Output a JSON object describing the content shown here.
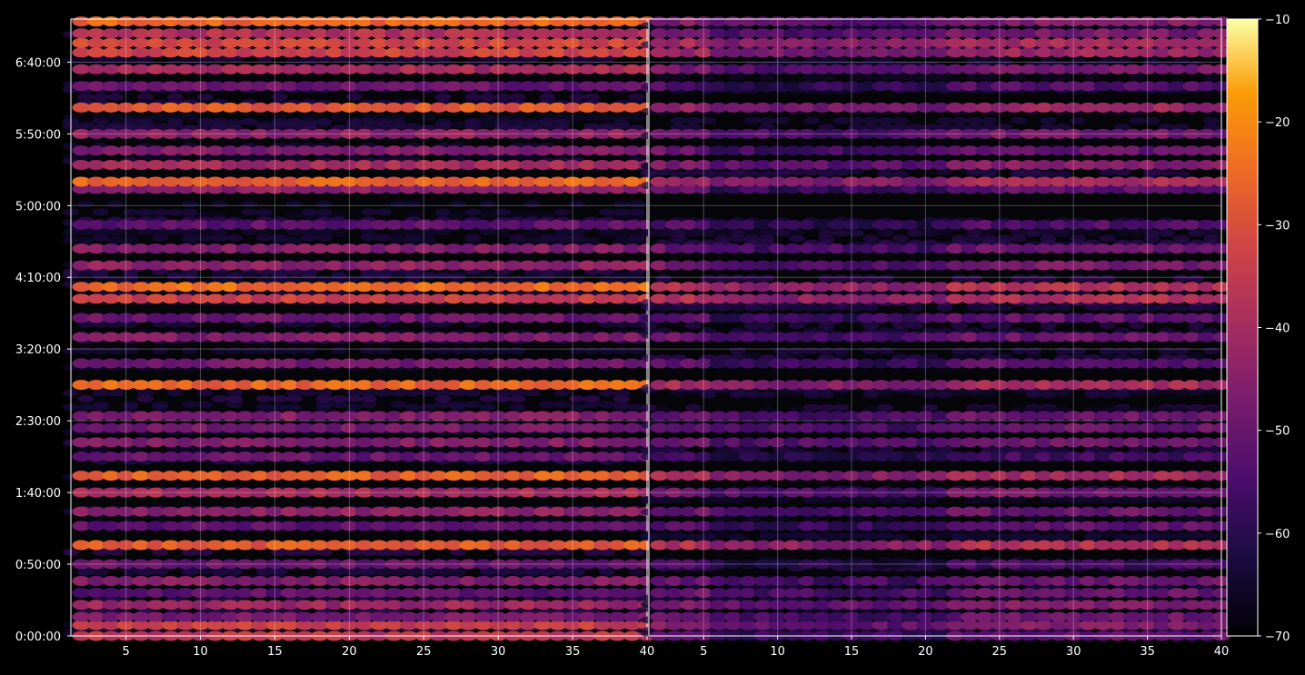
{
  "chart_data": {
    "type": "heatmap",
    "title": "",
    "colorscale": "inferno",
    "background": "#000000",
    "grid": true,
    "grid_color": "#ffffff",
    "panels": [
      {
        "name": "left",
        "xlim": [
          1.3,
          40
        ],
        "x_ticks": [
          "5",
          "10",
          "15",
          "20",
          "25",
          "30",
          "35",
          "40"
        ],
        "x_tick_values": [
          5,
          10,
          15,
          20,
          25,
          30,
          35,
          40
        ]
      },
      {
        "name": "right",
        "xlim": [
          1.3,
          40
        ],
        "x_ticks": [
          "5",
          "10",
          "15",
          "20",
          "25",
          "30",
          "35",
          "40"
        ],
        "x_tick_values": [
          5,
          10,
          15,
          20,
          25,
          30,
          35,
          40
        ]
      }
    ],
    "y_ticks": [
      "0:00:00",
      "0:50:00",
      "1:40:00",
      "2:30:00",
      "3:20:00",
      "4:10:00",
      "5:00:00",
      "5:50:00",
      "6:40:00"
    ],
    "y_tick_values": [
      0,
      3000,
      6000,
      9000,
      12000,
      15000,
      18000,
      21000,
      24000
    ],
    "ylim": [
      0,
      25800
    ],
    "colorbar": {
      "range": [
        -70,
        -10
      ],
      "ticks": [
        "−10",
        "−20",
        "−30",
        "−40",
        "−50",
        "−60",
        "−70"
      ],
      "tick_values": [
        -10,
        -20,
        -30,
        -40,
        -50,
        -60,
        -70
      ]
    },
    "bands": [
      {
        "t": 0,
        "left": -36,
        "right": -52
      },
      {
        "t": 450,
        "left": -34,
        "right": -46
      },
      {
        "t": 800,
        "left": -48,
        "right": -50
      },
      {
        "t": 1300,
        "left": -42,
        "right": -46
      },
      {
        "t": 1800,
        "left": -52,
        "right": -50
      },
      {
        "t": 2300,
        "left": -46,
        "right": -50
      },
      {
        "t": 3000,
        "left": -50,
        "right": -56
      },
      {
        "t": 3800,
        "left": -28,
        "right": -38
      },
      {
        "t": 4600,
        "left": -52,
        "right": -52
      },
      {
        "t": 5200,
        "left": -44,
        "right": -50
      },
      {
        "t": 6000,
        "left": -40,
        "right": -48
      },
      {
        "t": 6700,
        "left": -27,
        "right": -40
      },
      {
        "t": 7500,
        "left": -50,
        "right": -56
      },
      {
        "t": 8100,
        "left": -46,
        "right": -48
      },
      {
        "t": 8700,
        "left": -48,
        "right": -50
      },
      {
        "t": 9200,
        "left": -46,
        "right": -50
      },
      {
        "t": 10500,
        "left": -26,
        "right": -40
      },
      {
        "t": 11400,
        "left": -48,
        "right": -52
      },
      {
        "t": 12500,
        "left": -46,
        "right": -50
      },
      {
        "t": 13300,
        "left": -50,
        "right": -52
      },
      {
        "t": 14100,
        "left": -34,
        "right": -38
      },
      {
        "t": 14600,
        "left": -25,
        "right": -38
      },
      {
        "t": 15500,
        "left": -44,
        "right": -48
      },
      {
        "t": 16200,
        "left": -46,
        "right": -50
      },
      {
        "t": 17200,
        "left": -52,
        "right": -54
      },
      {
        "t": 18700,
        "left": -44,
        "right": -52
      },
      {
        "t": 19000,
        "left": -26,
        "right": -40
      },
      {
        "t": 19700,
        "left": -40,
        "right": -46
      },
      {
        "t": 20300,
        "left": -46,
        "right": -50
      },
      {
        "t": 21000,
        "left": -44,
        "right": -48
      },
      {
        "t": 22100,
        "left": -28,
        "right": -42
      },
      {
        "t": 23000,
        "left": -50,
        "right": -54
      },
      {
        "t": 23700,
        "left": -40,
        "right": -48
      },
      {
        "t": 24400,
        "left": -33,
        "right": -42
      },
      {
        "t": 24800,
        "left": -32,
        "right": -40
      },
      {
        "t": 25200,
        "left": -38,
        "right": -48
      },
      {
        "t": 25700,
        "left": -26,
        "right": -46
      }
    ]
  }
}
